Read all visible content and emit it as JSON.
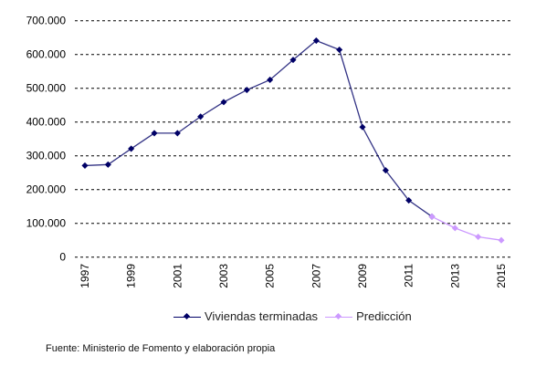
{
  "chart_data": {
    "type": "line",
    "title": "",
    "xlabel": "",
    "ylabel": "",
    "x": [
      1997,
      1998,
      1999,
      2000,
      2001,
      2002,
      2003,
      2004,
      2005,
      2006,
      2007,
      2008,
      2009,
      2010,
      2011,
      2012,
      2013,
      2014,
      2015
    ],
    "x_tick_labels": [
      "1997",
      "1999",
      "2001",
      "2003",
      "2005",
      "2007",
      "2009",
      "2011",
      "2013",
      "2015"
    ],
    "y_tick_labels": [
      "0",
      "100.000",
      "200.000",
      "300.000",
      "400.000",
      "500.000",
      "600.000",
      "700.000"
    ],
    "ylim": [
      0,
      700000
    ],
    "grid": "horizontal dashed",
    "legend_position": "bottom",
    "series": [
      {
        "name": "Viviendas terminadas",
        "color": "#000066",
        "x": [
          1997,
          1998,
          1999,
          2000,
          2001,
          2002,
          2003,
          2004,
          2005,
          2006,
          2007,
          2008,
          2009,
          2010,
          2011,
          2012
        ],
        "values": [
          271000,
          274000,
          321000,
          367000,
          367000,
          416000,
          459000,
          495000,
          525000,
          584000,
          641000,
          614000,
          385000,
          257000,
          168000,
          120000
        ]
      },
      {
        "name": "Predicción",
        "color": "#cc99ff",
        "x": [
          2012,
          2013,
          2014,
          2015
        ],
        "values": [
          120000,
          86000,
          60000,
          50000
        ]
      }
    ]
  },
  "footer": "Fuente: Ministerio de Fomento y elaboración propia"
}
